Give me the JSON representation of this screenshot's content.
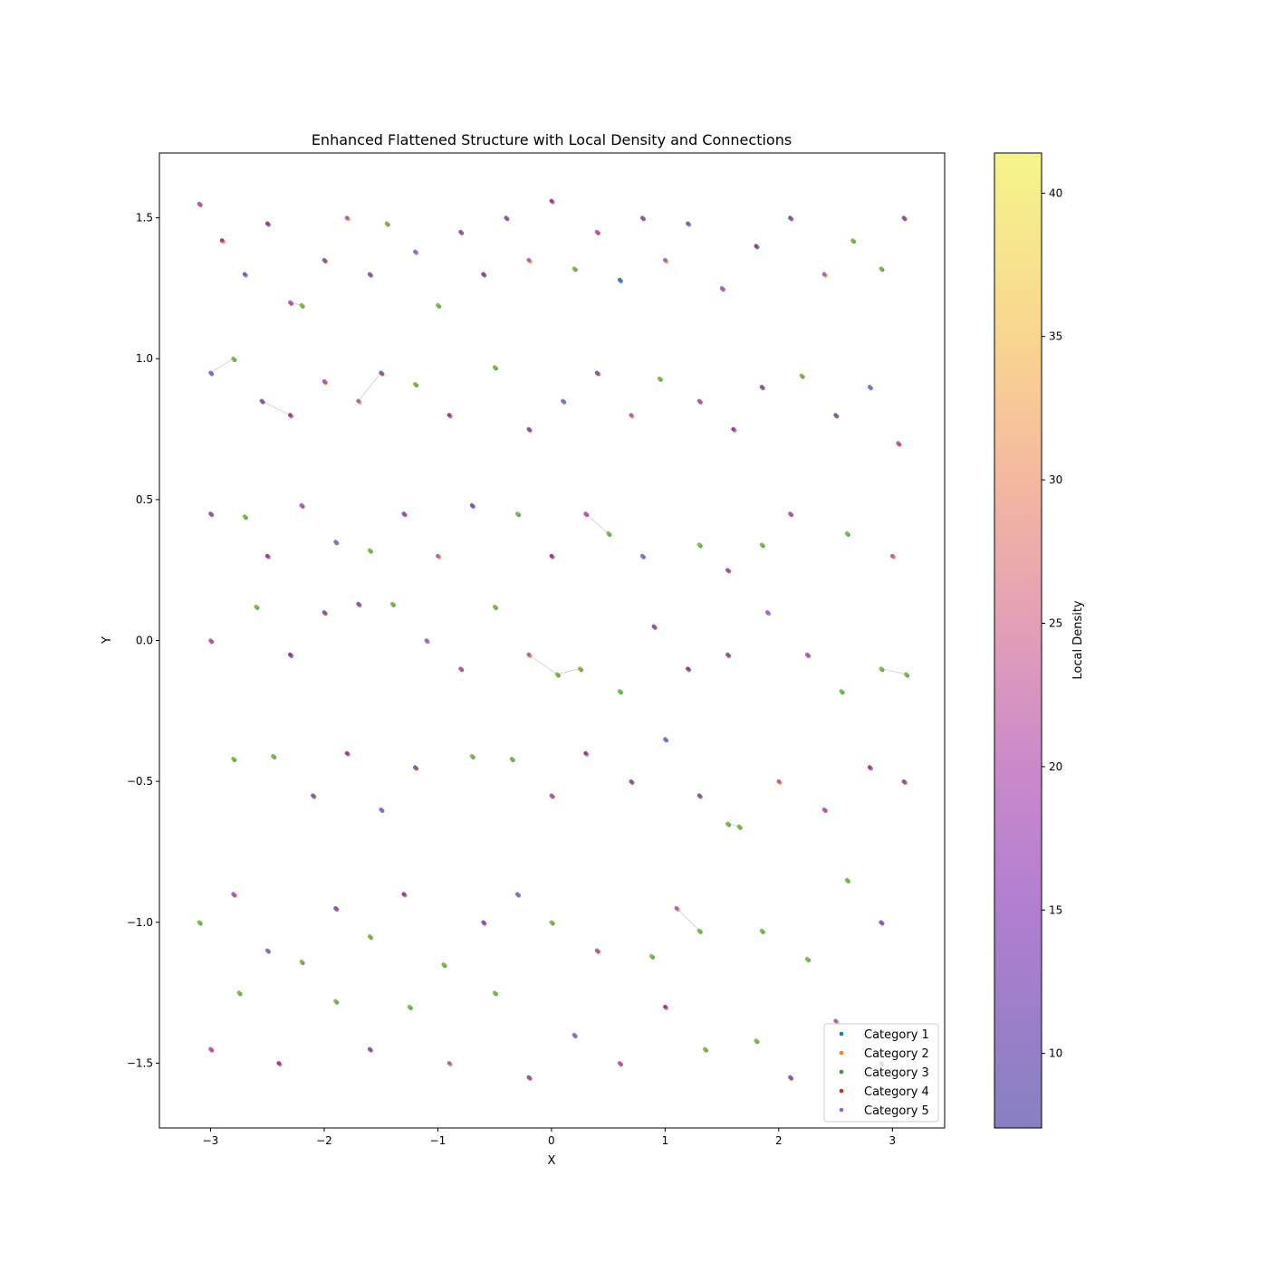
{
  "chart_data": {
    "type": "scatter",
    "title": "Enhanced Flattened Structure with Local Density and Connections",
    "xlabel": "X",
    "ylabel": "Y",
    "xlim": [
      -3.45,
      3.46
    ],
    "ylim": [
      -1.73,
      1.73
    ],
    "xticks": [
      -3,
      -2,
      -1,
      0,
      1,
      2,
      3
    ],
    "yticks": [
      -1.5,
      -1.0,
      -0.5,
      0.0,
      0.5,
      1.0,
      1.5
    ],
    "ytick_labels": [
      "−1.5",
      "−1.0",
      "−0.5",
      "0.0",
      "0.5",
      "1.0",
      "1.5"
    ],
    "xtick_labels": [
      "−3",
      "−2",
      "−1",
      "0",
      "1",
      "2",
      "3"
    ],
    "grid": false,
    "legend": {
      "placement": "lower-right",
      "entries": [
        "Category 1",
        "Category 2",
        "Category 3",
        "Category 4",
        "Category 5"
      ]
    },
    "category_colors": [
      "#1f77b4",
      "#ff7f0e",
      "#2ca02c",
      "#d62728",
      "#9467bd"
    ],
    "colorbar": {
      "label": "Local Density",
      "range": [
        7.4,
        41.4
      ],
      "ticks": [
        10,
        15,
        20,
        25,
        30,
        35,
        40
      ],
      "colormap": "plasma",
      "alpha": 0.5
    },
    "note_points": "representative sample of the plotted points: [x, y, category, local_density]",
    "points": [
      [
        -3.1,
        1.55,
        4,
        12
      ],
      [
        -2.9,
        1.42,
        2,
        18
      ],
      [
        -2.7,
        1.3,
        5,
        10
      ],
      [
        -2.5,
        1.48,
        1,
        16
      ],
      [
        -2.3,
        1.2,
        4,
        13
      ],
      [
        -2.2,
        1.19,
        3,
        38
      ],
      [
        -2.0,
        1.35,
        4,
        11
      ],
      [
        -1.8,
        1.5,
        2,
        14
      ],
      [
        -1.6,
        1.3,
        4,
        10
      ],
      [
        -1.45,
        1.48,
        3,
        36
      ],
      [
        -1.2,
        1.38,
        5,
        12
      ],
      [
        -1.0,
        1.19,
        3,
        37
      ],
      [
        -0.8,
        1.45,
        4,
        11
      ],
      [
        -0.6,
        1.3,
        1,
        15
      ],
      [
        -0.4,
        1.5,
        4,
        10
      ],
      [
        -0.2,
        1.35,
        2,
        13
      ],
      [
        0.0,
        1.56,
        5,
        16
      ],
      [
        0.2,
        1.32,
        3,
        39
      ],
      [
        0.4,
        1.45,
        4,
        12
      ],
      [
        0.6,
        1.28,
        1,
        9
      ],
      [
        0.8,
        1.5,
        4,
        11
      ],
      [
        1.0,
        1.35,
        2,
        14
      ],
      [
        1.2,
        1.48,
        5,
        10
      ],
      [
        1.5,
        1.25,
        4,
        12
      ],
      [
        1.8,
        1.4,
        1,
        15
      ],
      [
        2.1,
        1.5,
        4,
        10
      ],
      [
        2.4,
        1.3,
        2,
        13
      ],
      [
        2.65,
        1.42,
        3,
        36
      ],
      [
        2.9,
        1.32,
        3,
        38
      ],
      [
        3.1,
        1.5,
        4,
        11
      ],
      [
        -3.0,
        0.95,
        1,
        13
      ],
      [
        -2.8,
        1.0,
        3,
        35
      ],
      [
        -2.55,
        0.85,
        4,
        10
      ],
      [
        -2.3,
        0.8,
        5,
        16
      ],
      [
        -2.0,
        0.92,
        4,
        12
      ],
      [
        -1.7,
        0.85,
        2,
        14
      ],
      [
        -1.5,
        0.95,
        4,
        11
      ],
      [
        -1.2,
        0.91,
        3,
        37
      ],
      [
        -0.9,
        0.8,
        5,
        15
      ],
      [
        -0.5,
        0.97,
        3,
        36
      ],
      [
        -0.2,
        0.75,
        4,
        10
      ],
      [
        0.1,
        0.85,
        1,
        12
      ],
      [
        0.4,
        0.95,
        4,
        11
      ],
      [
        0.7,
        0.8,
        2,
        14
      ],
      [
        0.95,
        0.93,
        3,
        39
      ],
      [
        1.3,
        0.85,
        4,
        12
      ],
      [
        1.6,
        0.75,
        5,
        16
      ],
      [
        1.85,
        0.9,
        4,
        11
      ],
      [
        2.2,
        0.94,
        3,
        38
      ],
      [
        2.5,
        0.8,
        4,
        10
      ],
      [
        2.8,
        0.9,
        1,
        13
      ],
      [
        3.05,
        0.7,
        4,
        12
      ],
      [
        -3.0,
        0.45,
        4,
        11
      ],
      [
        -2.7,
        0.44,
        3,
        37
      ],
      [
        -2.5,
        0.3,
        5,
        15
      ],
      [
        -2.2,
        0.48,
        4,
        12
      ],
      [
        -1.9,
        0.35,
        1,
        14
      ],
      [
        -1.6,
        0.32,
        3,
        39
      ],
      [
        -1.3,
        0.45,
        4,
        10
      ],
      [
        -1.0,
        0.3,
        2,
        13
      ],
      [
        -0.7,
        0.48,
        4,
        11
      ],
      [
        -0.3,
        0.45,
        3,
        36
      ],
      [
        0.0,
        0.3,
        5,
        16
      ],
      [
        0.3,
        0.45,
        4,
        12
      ],
      [
        0.5,
        0.38,
        3,
        38
      ],
      [
        0.8,
        0.3,
        1,
        14
      ],
      [
        1.3,
        0.34,
        3,
        37
      ],
      [
        1.55,
        0.25,
        4,
        11
      ],
      [
        1.85,
        0.34,
        3,
        38
      ],
      [
        2.1,
        0.45,
        4,
        12
      ],
      [
        2.6,
        0.38,
        3,
        37
      ],
      [
        3.0,
        0.3,
        2,
        13
      ],
      [
        -3.0,
        0.0,
        4,
        12
      ],
      [
        -2.6,
        0.12,
        3,
        36
      ],
      [
        -2.3,
        -0.05,
        1,
        15
      ],
      [
        -2.0,
        0.1,
        4,
        11
      ],
      [
        -1.7,
        0.13,
        4,
        10
      ],
      [
        -1.4,
        0.13,
        3,
        37
      ],
      [
        -1.1,
        0.0,
        5,
        14
      ],
      [
        -0.8,
        -0.1,
        4,
        12
      ],
      [
        -0.5,
        0.12,
        3,
        36
      ],
      [
        -0.2,
        -0.05,
        2,
        13
      ],
      [
        0.05,
        -0.12,
        3,
        38
      ],
      [
        0.25,
        -0.1,
        3,
        37
      ],
      [
        0.6,
        -0.18,
        3,
        36
      ],
      [
        0.9,
        0.05,
        4,
        11
      ],
      [
        1.2,
        -0.1,
        1,
        15
      ],
      [
        1.55,
        -0.05,
        4,
        10
      ],
      [
        1.9,
        0.1,
        5,
        14
      ],
      [
        2.25,
        -0.05,
        4,
        12
      ],
      [
        2.55,
        -0.18,
        3,
        38
      ],
      [
        2.9,
        -0.1,
        3,
        37
      ],
      [
        3.12,
        -0.12,
        3,
        36
      ],
      [
        -2.8,
        -0.42,
        3,
        38
      ],
      [
        -2.45,
        -0.41,
        3,
        39
      ],
      [
        -2.1,
        -0.55,
        4,
        11
      ],
      [
        -1.8,
        -0.4,
        5,
        15
      ],
      [
        -1.5,
        -0.6,
        1,
        13
      ],
      [
        -1.2,
        -0.45,
        4,
        10
      ],
      [
        -0.7,
        -0.41,
        3,
        37
      ],
      [
        -0.35,
        -0.42,
        3,
        36
      ],
      [
        0.0,
        -0.55,
        4,
        12
      ],
      [
        0.3,
        -0.4,
        5,
        16
      ],
      [
        0.7,
        -0.5,
        4,
        11
      ],
      [
        1.0,
        -0.35,
        1,
        14
      ],
      [
        1.3,
        -0.55,
        4,
        10
      ],
      [
        1.55,
        -0.65,
        3,
        37
      ],
      [
        1.65,
        -0.66,
        3,
        38
      ],
      [
        2.0,
        -0.5,
        2,
        13
      ],
      [
        2.4,
        -0.6,
        4,
        12
      ],
      [
        2.8,
        -0.45,
        5,
        15
      ],
      [
        3.1,
        -0.5,
        4,
        11
      ],
      [
        -3.1,
        -1.0,
        3,
        36
      ],
      [
        -2.8,
        -0.9,
        4,
        12
      ],
      [
        -2.5,
        -1.1,
        1,
        14
      ],
      [
        -2.2,
        -1.14,
        3,
        37
      ],
      [
        -1.9,
        -0.95,
        4,
        11
      ],
      [
        -1.6,
        -1.05,
        3,
        39
      ],
      [
        -1.3,
        -0.9,
        5,
        15
      ],
      [
        -0.95,
        -1.15,
        3,
        38
      ],
      [
        -0.6,
        -1.0,
        4,
        10
      ],
      [
        -0.3,
        -0.9,
        1,
        13
      ],
      [
        0.0,
        -1.0,
        3,
        36
      ],
      [
        0.4,
        -1.1,
        4,
        12
      ],
      [
        0.88,
        -1.12,
        3,
        38
      ],
      [
        1.1,
        -0.95,
        2,
        14
      ],
      [
        1.3,
        -1.03,
        3,
        37
      ],
      [
        1.85,
        -1.03,
        3,
        36
      ],
      [
        2.25,
        -1.13,
        3,
        39
      ],
      [
        2.6,
        -0.85,
        3,
        37
      ],
      [
        2.9,
        -1.0,
        4,
        11
      ],
      [
        -3.0,
        -1.45,
        4,
        12
      ],
      [
        -2.75,
        -1.25,
        3,
        36
      ],
      [
        -2.4,
        -1.5,
        5,
        16
      ],
      [
        -1.9,
        -1.28,
        3,
        37
      ],
      [
        -1.6,
        -1.45,
        4,
        11
      ],
      [
        -1.25,
        -1.3,
        3,
        38
      ],
      [
        -0.9,
        -1.5,
        2,
        13
      ],
      [
        -0.5,
        -1.25,
        3,
        36
      ],
      [
        -0.2,
        -1.55,
        4,
        10
      ],
      [
        0.2,
        -1.4,
        1,
        14
      ],
      [
        0.6,
        -1.5,
        4,
        12
      ],
      [
        1.0,
        -1.3,
        5,
        15
      ],
      [
        1.35,
        -1.45,
        3,
        37
      ],
      [
        1.8,
        -1.42,
        3,
        38
      ],
      [
        2.1,
        -1.55,
        4,
        11
      ],
      [
        2.5,
        -1.35,
        2,
        13
      ],
      [
        2.9,
        -1.5,
        4,
        10
      ]
    ]
  }
}
